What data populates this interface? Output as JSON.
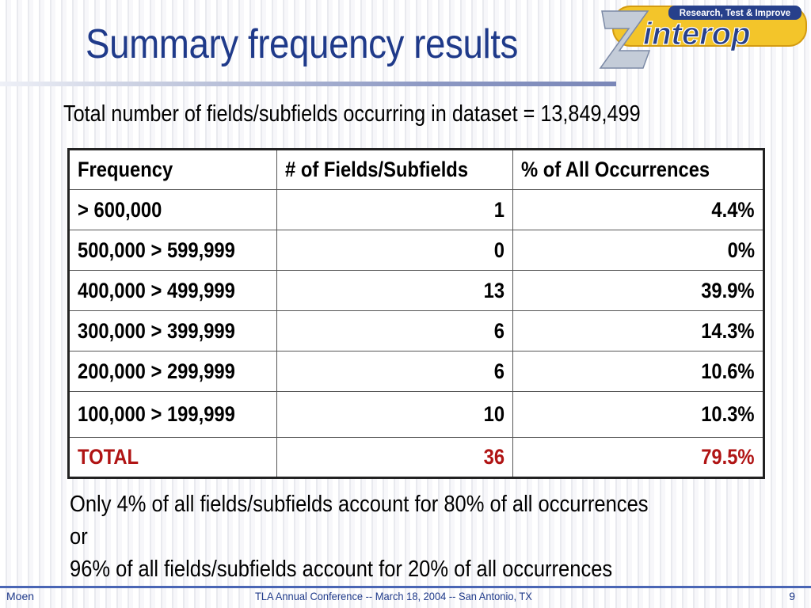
{
  "slide": {
    "title": "Summary frequency results",
    "subtitle": "Total number of fields/subfields occurring in dataset = 13,849,499"
  },
  "logo": {
    "tagline": "Research, Test & Improve",
    "brand": "Zinterop",
    "colors": {
      "gold": "#f3c52a",
      "blue": "#27408b",
      "silver": "#c4ccd8"
    }
  },
  "table": {
    "headers": [
      "Frequency",
      "# of Fields/Subfields",
      "% of All Occurrences"
    ],
    "rows": [
      {
        "frequency": "> 600,000",
        "count": "1",
        "percent": "4.4%"
      },
      {
        "frequency": "500,000 > 599,999",
        "count": "0",
        "percent": "0%"
      },
      {
        "frequency": "400,000 > 499,999",
        "count": "13",
        "percent": "39.9%"
      },
      {
        "frequency": "300,000 > 399,999",
        "count": "6",
        "percent": "14.3%"
      },
      {
        "frequency": "200,000 > 299,999",
        "count": "6",
        "percent": "10.6%"
      },
      {
        "frequency": "100,000 > 199,999",
        "count": "10",
        "percent": "10.3%"
      }
    ],
    "total": {
      "label": "TOTAL",
      "count": "36",
      "percent": "79.5%",
      "color": "#b01414"
    }
  },
  "notes": [
    "Only 4% of all fields/subfields account for 80% of all occurrences",
    "or",
    "96% of all fields/subfields account for 20% of all occurrences"
  ],
  "footer": {
    "author": "Moen",
    "event": "TLA Annual Conference -- March 18, 2004 -- San Antonio, TX",
    "page": "9"
  },
  "colors": {
    "title": "#1f3a8a",
    "footer_rule": "#4a66b5"
  }
}
